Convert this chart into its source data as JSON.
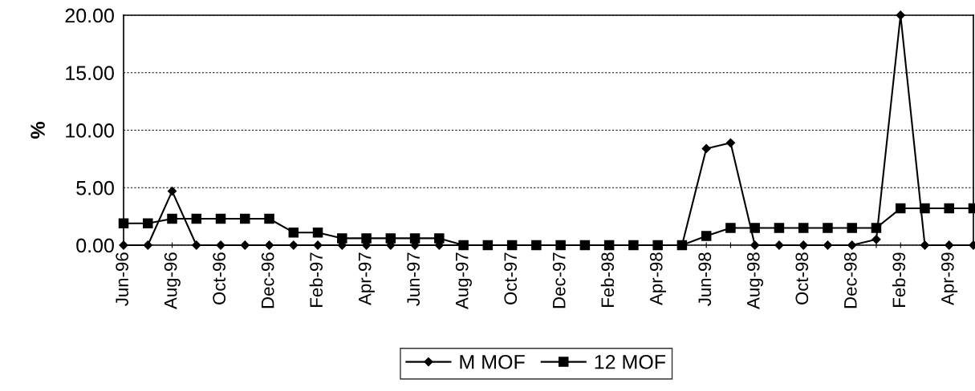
{
  "chart_data": {
    "type": "line",
    "ylabel": "%",
    "categories": [
      "Jun-96",
      null,
      "Aug-96",
      null,
      "Oct-96",
      null,
      "Dec-96",
      null,
      "Feb-97",
      null,
      "Apr-97",
      null,
      "Jun-97",
      null,
      "Aug-97",
      null,
      "Oct-97",
      null,
      "Dec-97",
      null,
      "Feb-98",
      null,
      "Apr-98",
      null,
      "Jun-98",
      null,
      "Aug-98",
      null,
      "Oct-98",
      null,
      "Dec-98",
      null,
      "Feb-99",
      null,
      "Apr-99",
      null
    ],
    "series": [
      {
        "name": "M MOF",
        "color": "#000000",
        "marker": "diamond",
        "values": [
          0,
          0,
          4.7,
          0,
          0,
          0,
          0,
          0,
          0,
          0,
          0,
          0,
          0,
          0,
          0,
          0,
          0,
          0,
          0,
          0,
          0,
          0,
          0,
          0,
          8.4,
          8.9,
          0,
          0,
          0,
          0,
          0,
          0.5,
          20,
          0,
          0,
          0
        ]
      },
      {
        "name": "12 MOF",
        "color": "#000000",
        "marker": "square",
        "values": [
          1.9,
          1.9,
          2.3,
          2.3,
          2.3,
          2.3,
          2.3,
          1.1,
          1.1,
          0.6,
          0.6,
          0.6,
          0.6,
          0.6,
          0,
          0,
          0,
          0,
          0,
          0,
          0,
          0,
          0,
          0,
          0.8,
          1.5,
          1.5,
          1.5,
          1.5,
          1.5,
          1.5,
          1.5,
          3.2,
          3.2,
          3.2,
          3.2
        ]
      }
    ],
    "ylim": [
      0,
      20
    ],
    "yticks": [
      {
        "value": 0,
        "label": "0.00"
      },
      {
        "value": 5,
        "label": "5.00"
      },
      {
        "value": 10,
        "label": "10.00"
      },
      {
        "value": 15,
        "label": "15.00"
      },
      {
        "value": 20,
        "label": "20.00"
      }
    ],
    "grid": "y",
    "legend": "bottom",
    "line_style": "solid"
  }
}
